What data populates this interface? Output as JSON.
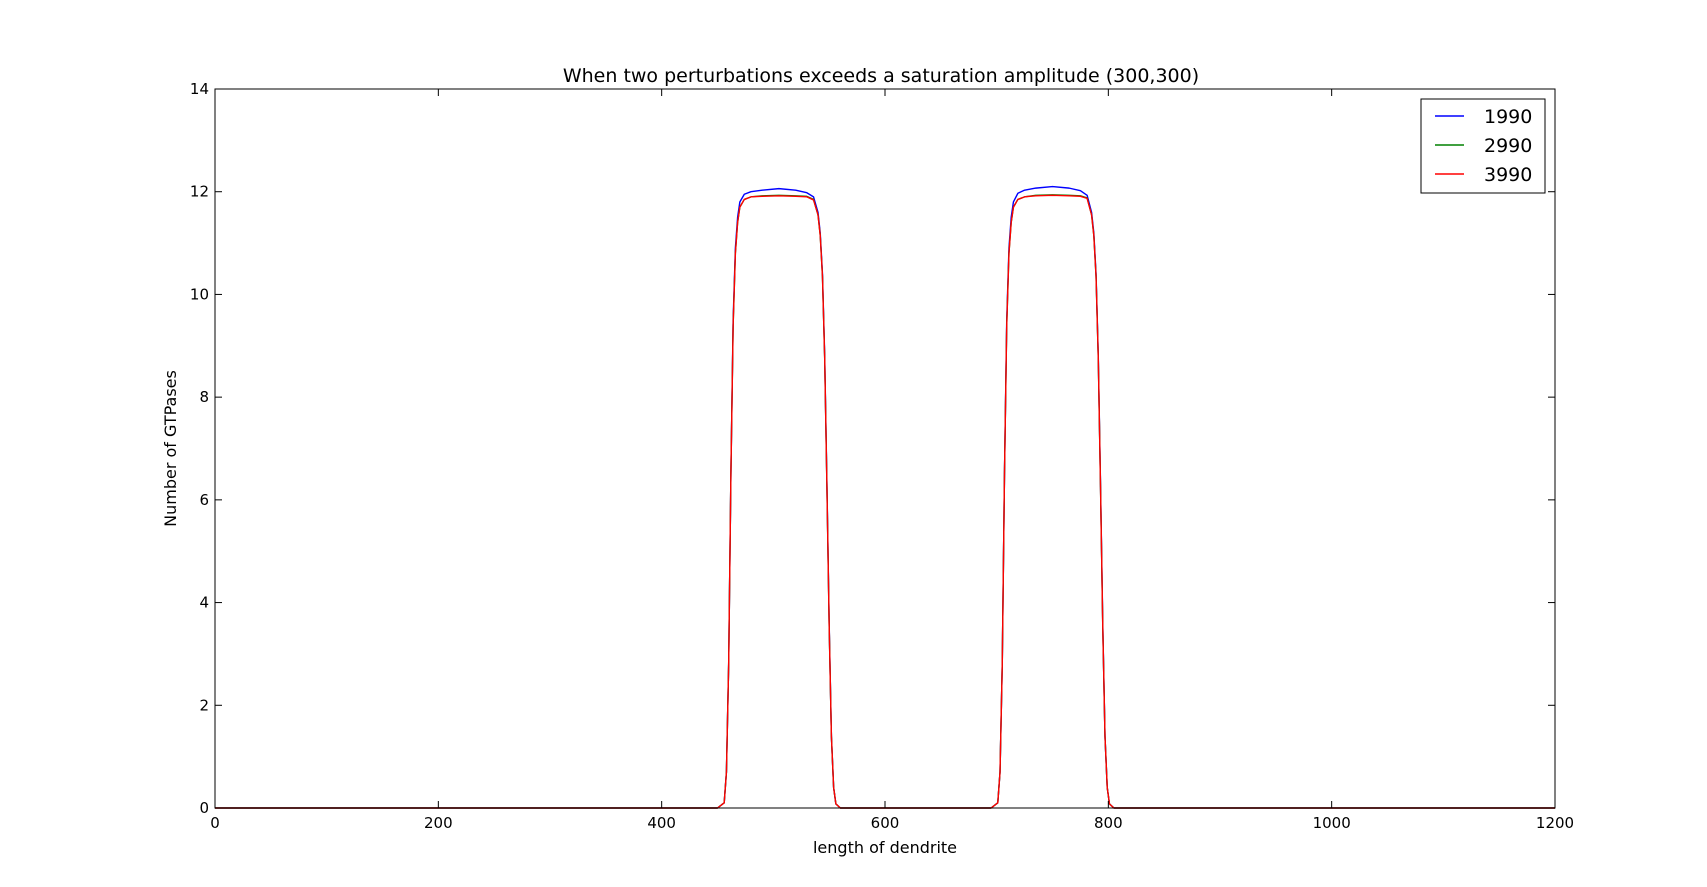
{
  "chart_data": {
    "type": "line",
    "title": "When two perturbations exceeds a saturation amplitude (300,300)",
    "xlabel": "length of dendrite",
    "ylabel": "Number of GTPases",
    "xlim": [
      0,
      1200
    ],
    "ylim": [
      0,
      14
    ],
    "xticks": [
      0,
      200,
      400,
      600,
      800,
      1000,
      1200
    ],
    "yticks": [
      0,
      2,
      4,
      6,
      8,
      10,
      12,
      14
    ],
    "grid": false,
    "legend_position": "top-right",
    "series": [
      {
        "name": "1990",
        "color": "#0000ff",
        "x": [
          0,
          450,
          456,
          458,
          460,
          462,
          464,
          466,
          468,
          470,
          474,
          480,
          490,
          505,
          520,
          530,
          536,
          540,
          542,
          544,
          546,
          548,
          550,
          552,
          554,
          556,
          560,
          600,
          695,
          701,
          703,
          705,
          707,
          709,
          711,
          713,
          715,
          719,
          725,
          735,
          750,
          765,
          775,
          781,
          785,
          787,
          789,
          791,
          793,
          795,
          797,
          799,
          801,
          805,
          850,
          1200
        ],
        "y": [
          0,
          0,
          0.1,
          0.7,
          2.8,
          6.5,
          9.5,
          10.9,
          11.5,
          11.8,
          11.95,
          12.0,
          12.03,
          12.06,
          12.03,
          11.98,
          11.9,
          11.6,
          11.2,
          10.4,
          8.8,
          6.3,
          3.6,
          1.4,
          0.4,
          0.08,
          0,
          0,
          0,
          0.1,
          0.7,
          2.8,
          6.5,
          9.5,
          10.9,
          11.5,
          11.8,
          11.97,
          12.03,
          12.07,
          12.1,
          12.07,
          12.02,
          11.93,
          11.6,
          11.2,
          10.4,
          8.8,
          6.3,
          3.6,
          1.4,
          0.4,
          0.08,
          0,
          0,
          0
        ]
      },
      {
        "name": "2990",
        "color": "#008000",
        "x": [
          0,
          450,
          456,
          458,
          460,
          462,
          464,
          466,
          468,
          470,
          474,
          480,
          490,
          505,
          520,
          530,
          536,
          540,
          542,
          544,
          546,
          548,
          550,
          552,
          554,
          556,
          560,
          600,
          695,
          701,
          703,
          705,
          707,
          709,
          711,
          713,
          715,
          719,
          725,
          735,
          750,
          765,
          775,
          781,
          785,
          787,
          789,
          791,
          793,
          795,
          797,
          799,
          801,
          805,
          850,
          1200
        ],
        "y": [
          0,
          0,
          0.1,
          0.7,
          2.8,
          6.5,
          9.4,
          10.8,
          11.4,
          11.7,
          11.85,
          11.9,
          11.92,
          11.93,
          11.92,
          11.91,
          11.85,
          11.55,
          11.15,
          10.35,
          8.75,
          6.25,
          3.55,
          1.4,
          0.4,
          0.08,
          0,
          0,
          0,
          0.1,
          0.7,
          2.8,
          6.5,
          9.4,
          10.8,
          11.4,
          11.7,
          11.85,
          11.9,
          11.93,
          11.94,
          11.93,
          11.92,
          11.88,
          11.55,
          11.15,
          10.35,
          8.75,
          6.25,
          3.55,
          1.4,
          0.4,
          0.08,
          0,
          0,
          0
        ]
      },
      {
        "name": "3990",
        "color": "#ff0000",
        "x": [
          0,
          450,
          456,
          458,
          460,
          462,
          464,
          466,
          468,
          470,
          474,
          480,
          490,
          505,
          520,
          530,
          536,
          540,
          542,
          544,
          546,
          548,
          550,
          552,
          554,
          556,
          560,
          600,
          695,
          701,
          703,
          705,
          707,
          709,
          711,
          713,
          715,
          719,
          725,
          735,
          750,
          765,
          775,
          781,
          785,
          787,
          789,
          791,
          793,
          795,
          797,
          799,
          801,
          805,
          850,
          1200
        ],
        "y": [
          0,
          0,
          0.1,
          0.7,
          2.8,
          6.5,
          9.4,
          10.8,
          11.4,
          11.7,
          11.85,
          11.9,
          11.91,
          11.92,
          11.91,
          11.9,
          11.84,
          11.55,
          11.15,
          10.35,
          8.75,
          6.25,
          3.55,
          1.4,
          0.4,
          0.08,
          0,
          0,
          0,
          0.1,
          0.7,
          2.8,
          6.5,
          9.4,
          10.8,
          11.4,
          11.7,
          11.85,
          11.9,
          11.92,
          11.93,
          11.92,
          11.91,
          11.87,
          11.55,
          11.15,
          10.35,
          8.75,
          6.25,
          3.55,
          1.4,
          0.4,
          0.08,
          0,
          0,
          0
        ]
      }
    ]
  }
}
